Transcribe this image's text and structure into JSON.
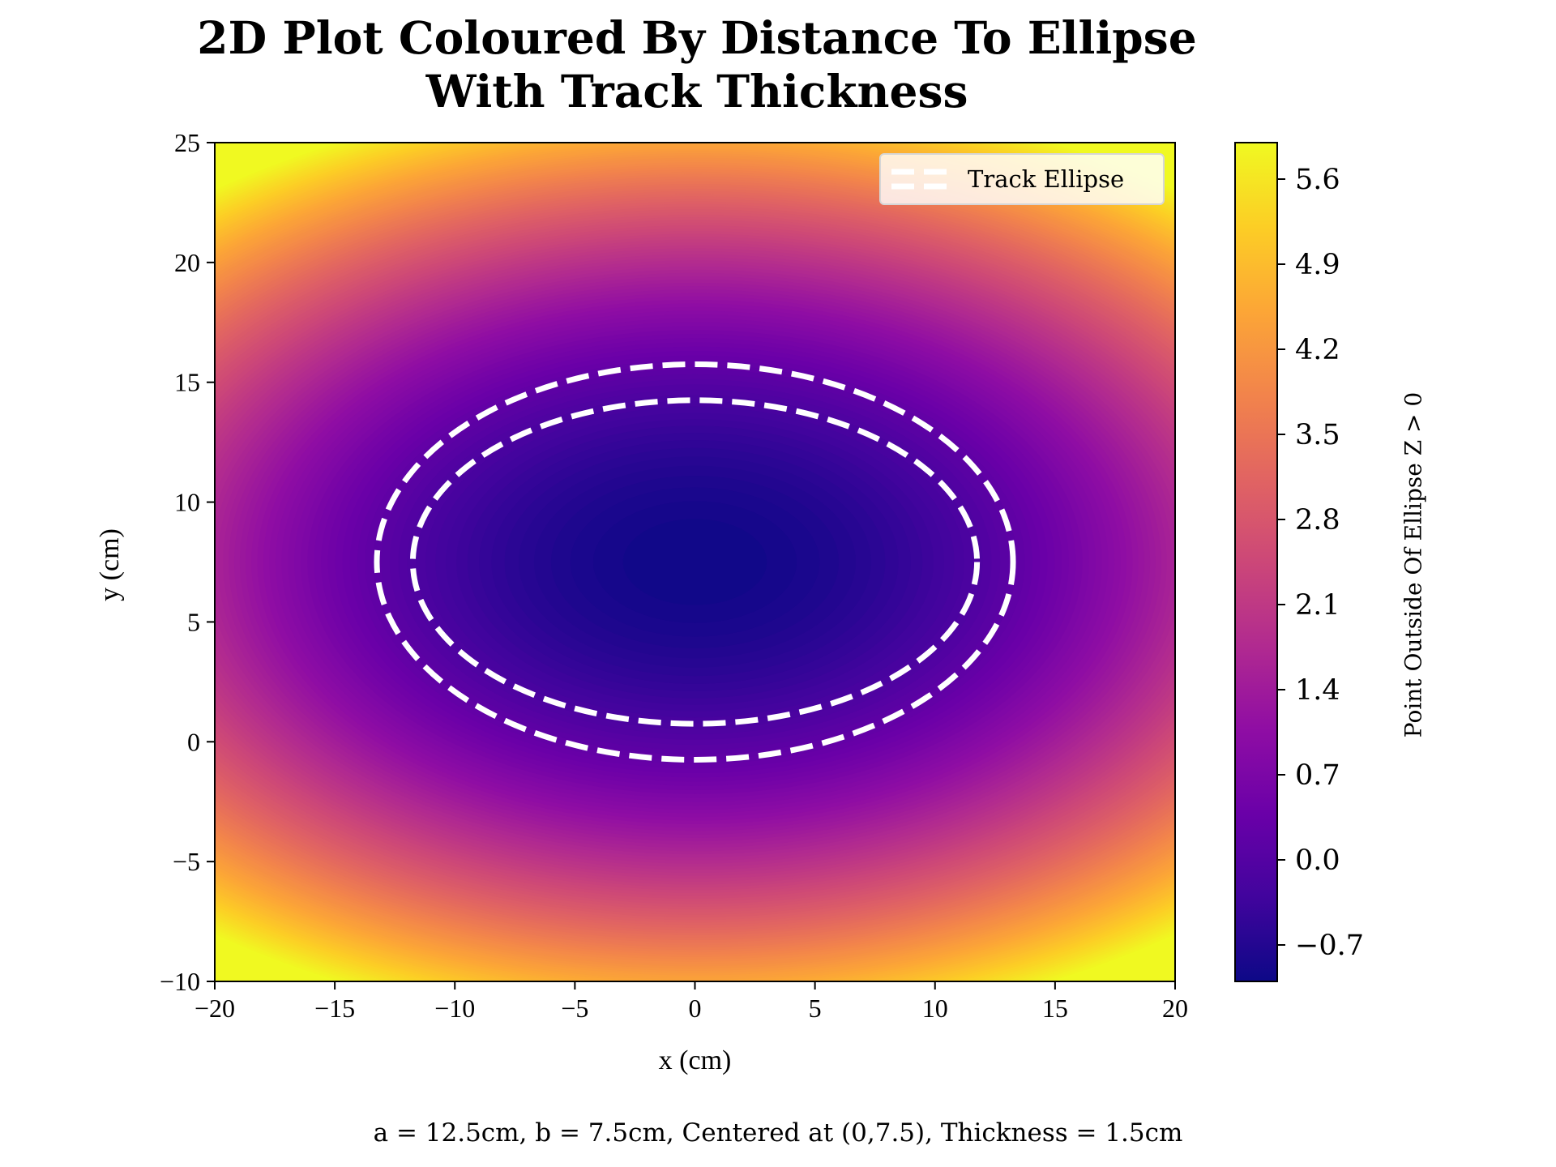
{
  "chart_data": {
    "type": "heatmap",
    "title": [
      "2D Plot Coloured By Distance To Ellipse",
      "With Track Thickness"
    ],
    "xlabel": "x (cm)",
    "ylabel": "y (cm)",
    "xlim": [
      -20,
      20
    ],
    "ylim": [
      -10,
      25
    ],
    "x_ticks": [
      "−20",
      "−15",
      "−10",
      "−5",
      "0",
      "5",
      "10",
      "15",
      "20"
    ],
    "x_tick_values": [
      -20,
      -15,
      -10,
      -5,
      0,
      5,
      10,
      15,
      20
    ],
    "y_ticks": [
      "−10",
      "−5",
      "0",
      "5",
      "10",
      "15",
      "20",
      "25"
    ],
    "y_tick_values": [
      -10,
      -5,
      0,
      5,
      10,
      15,
      20,
      25
    ],
    "colormap": "plasma",
    "colorbar": {
      "label": "Point Outside Of Ellipse Z > 0",
      "range": [
        -1.0,
        5.9
      ],
      "ticks": [
        "−0.7",
        "0.0",
        "0.7",
        "1.4",
        "2.1",
        "2.8",
        "3.5",
        "4.2",
        "4.9",
        "5.6"
      ],
      "tick_values": [
        -0.7,
        0.0,
        0.7,
        1.4,
        2.1,
        2.8,
        3.5,
        4.2,
        4.9,
        5.6
      ]
    },
    "ellipse": {
      "center": [
        0,
        7.5
      ],
      "a": 12.5,
      "b": 7.5,
      "thickness": 1.5
    },
    "track_lines": [
      {
        "a": 13.25,
        "b": 8.25
      },
      {
        "a": 11.75,
        "b": 6.75
      }
    ],
    "track_color": "#ffffff",
    "legend": {
      "entries": [
        "Track Ellipse"
      ],
      "placement": "top-right"
    },
    "caption": "a = 12.5cm, b = 7.5cm, Centered at (0,7.5), Thickness = 1.5cm"
  }
}
